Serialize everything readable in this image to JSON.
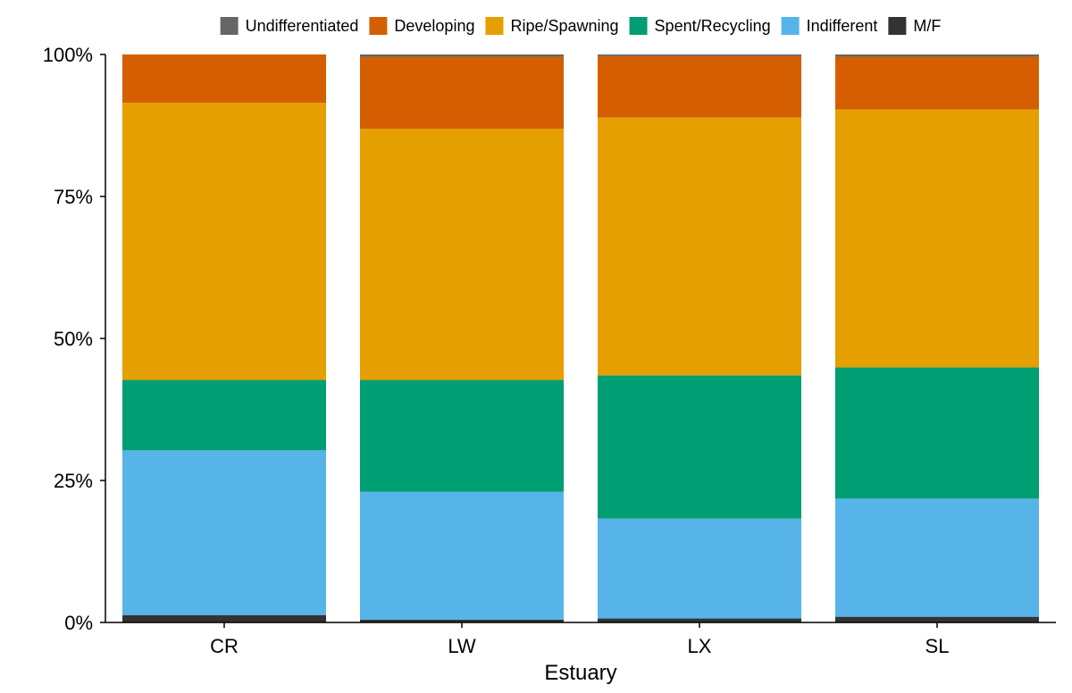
{
  "chart_data": {
    "type": "bar",
    "stacked": true,
    "normalized": true,
    "title": "",
    "xlabel": "Estuary",
    "ylabel": "",
    "ylim": [
      0,
      1
    ],
    "y_ticks": [
      0,
      0.25,
      0.5,
      0.75,
      1.0
    ],
    "y_tick_labels": [
      "0%",
      "25%",
      "50%",
      "75%",
      "100%"
    ],
    "categories": [
      "CR",
      "LW",
      "LX",
      "SL"
    ],
    "legend_position": "top",
    "grid": false,
    "series": [
      {
        "name": "M/F",
        "color": "#333333",
        "values": [
          0.013,
          0.005,
          0.007,
          0.01
        ]
      },
      {
        "name": "Indifferent",
        "color": "#56B4E9",
        "values": [
          0.29,
          0.225,
          0.176,
          0.208
        ]
      },
      {
        "name": "Spent/Recycling",
        "color": "#009E73",
        "values": [
          0.124,
          0.197,
          0.252,
          0.231
        ]
      },
      {
        "name": "Ripe/Spawning",
        "color": "#E69F00",
        "values": [
          0.488,
          0.442,
          0.454,
          0.454
        ]
      },
      {
        "name": "Developing",
        "color": "#D55E00",
        "values": [
          0.085,
          0.127,
          0.108,
          0.093
        ]
      },
      {
        "name": "Undifferentiated",
        "color": "#666666",
        "values": [
          0.0,
          0.004,
          0.003,
          0.004
        ]
      }
    ],
    "legend_order": [
      "Undifferentiated",
      "Developing",
      "Ripe/Spawning",
      "Spent/Recycling",
      "Indifferent",
      "M/F"
    ]
  }
}
